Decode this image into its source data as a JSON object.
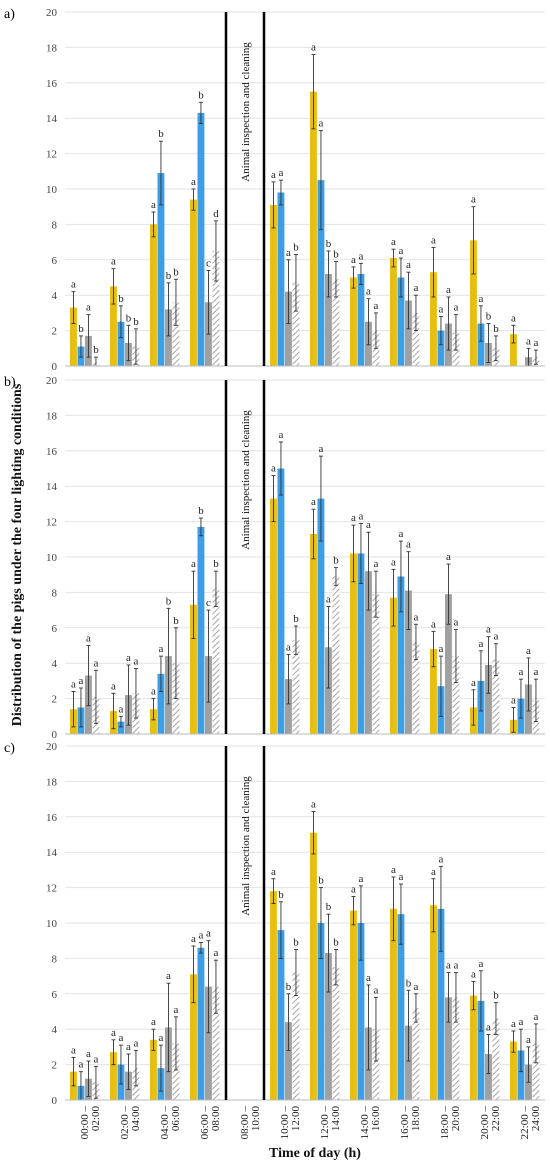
{
  "figure": {
    "y_axis_title": "Distribution of the pigs under the four lighting conditions",
    "x_axis_title": "Time of day (h)"
  },
  "colors": {
    "series": [
      "#e6bf12",
      "#3d9ee8",
      "#a0a0a0",
      "#ffffff"
    ],
    "hatch": "#909090",
    "gridline": "#e2e2e2",
    "divider": "#000000",
    "error_bar": "#333333"
  },
  "chart_data": [
    {
      "type": "bar",
      "panel_label": "a)",
      "annotation": "Animal inspection and cleaning",
      "categories": [
        "00:00 – 02:00",
        "02:00 – 04:00",
        "04:00 – 06:00",
        "06:00 – 08:00",
        "08:00 – 10:00",
        "10:00 – 12:00",
        "12:00 – 14:00",
        "14:00 – 16:00",
        "16:00 – 18:00",
        "18:00 – 20:00",
        "20:00 – 22:00",
        "22:00 – 24:00"
      ],
      "ylim": [
        0,
        20
      ],
      "yticks": [
        0,
        2,
        4,
        6,
        8,
        10,
        12,
        14,
        16,
        18,
        20
      ],
      "series": [
        {
          "values": [
            3.3,
            4.5,
            8.0,
            9.4,
            null,
            9.1,
            15.5,
            5.0,
            6.1,
            5.3,
            7.1,
            1.8
          ],
          "errors": [
            0.9,
            1.0,
            0.7,
            0.6,
            null,
            1.3,
            2.1,
            0.6,
            0.5,
            1.4,
            1.9,
            0.5
          ],
          "letters": [
            "a",
            "a",
            "a",
            "a",
            "",
            "a",
            "a",
            "a",
            "a",
            "a",
            "a",
            "a"
          ]
        },
        {
          "values": [
            1.1,
            2.5,
            10.9,
            14.3,
            null,
            9.8,
            10.5,
            5.2,
            5.0,
            2.0,
            2.4,
            0.0
          ],
          "errors": [
            0.6,
            0.9,
            1.8,
            0.6,
            null,
            0.7,
            2.8,
            0.6,
            1.1,
            0.8,
            1.0,
            0.0
          ],
          "letters": [
            "b",
            "b",
            "b",
            "b",
            "",
            "a",
            "a",
            "a",
            "a",
            "a",
            "a",
            ""
          ]
        },
        {
          "values": [
            1.7,
            1.3,
            3.2,
            3.6,
            null,
            4.2,
            5.2,
            2.5,
            3.7,
            2.4,
            1.3,
            0.5
          ],
          "errors": [
            1.2,
            1.0,
            1.5,
            1.8,
            null,
            1.8,
            1.3,
            1.3,
            1.6,
            1.5,
            1.1,
            0.5
          ],
          "letters": [
            "a",
            "b",
            "b",
            "c",
            "",
            "a",
            "b",
            "a",
            "a",
            "a",
            "b",
            "a"
          ]
        },
        {
          "values": [
            0.2,
            1.1,
            3.6,
            6.5,
            null,
            4.7,
            4.9,
            2.0,
            3.0,
            1.9,
            1.0,
            0.5
          ],
          "errors": [
            0.3,
            1.0,
            1.3,
            1.7,
            null,
            1.6,
            1.0,
            1.0,
            1.0,
            1.0,
            0.7,
            0.4
          ],
          "letters": [
            "b",
            "b",
            "b",
            "d",
            "",
            "b",
            "b",
            "a",
            "a",
            "a",
            "b",
            "a"
          ]
        }
      ]
    },
    {
      "type": "bar",
      "panel_label": "b)",
      "annotation": "Animal inspection and cleaning",
      "categories": [
        "00:00 – 02:00",
        "02:00 – 04:00",
        "04:00 – 06:00",
        "06:00 – 08:00",
        "08:00 – 10:00",
        "10:00 – 12:00",
        "12:00 – 14:00",
        "14:00 – 16:00",
        "16:00 – 18:00",
        "18:00 – 20:00",
        "20:00 – 22:00",
        "22:00 – 24:00"
      ],
      "ylim": [
        0,
        20
      ],
      "yticks": [
        0,
        2,
        4,
        6,
        8,
        10,
        12,
        14,
        16,
        18,
        20
      ],
      "series": [
        {
          "values": [
            1.4,
            1.3,
            1.4,
            7.3,
            null,
            13.3,
            11.3,
            10.2,
            7.7,
            4.8,
            1.5,
            0.8
          ],
          "errors": [
            1.0,
            1.0,
            0.6,
            1.9,
            null,
            1.3,
            1.4,
            1.6,
            1.6,
            1.0,
            1.0,
            0.7
          ],
          "letters": [
            "a",
            "a",
            "a",
            "a",
            "",
            "a",
            "a",
            "a",
            "a",
            "a",
            "a",
            "a"
          ]
        },
        {
          "values": [
            1.5,
            0.7,
            3.4,
            11.7,
            null,
            15.0,
            13.3,
            10.2,
            8.9,
            2.7,
            3.0,
            2.0
          ],
          "errors": [
            1.1,
            0.3,
            1.0,
            0.5,
            null,
            1.5,
            2.4,
            1.7,
            2.0,
            1.7,
            1.7,
            1.1
          ],
          "letters": [
            "a",
            "a",
            "a",
            "b",
            "",
            "a",
            "a",
            "a",
            "a",
            "a",
            "a",
            "a"
          ]
        },
        {
          "values": [
            3.3,
            2.2,
            4.4,
            4.4,
            null,
            3.1,
            4.9,
            9.2,
            8.1,
            7.9,
            3.9,
            2.8
          ],
          "errors": [
            1.7,
            1.7,
            2.7,
            2.6,
            null,
            1.4,
            2.3,
            2.2,
            2.2,
            1.7,
            1.6,
            1.5
          ],
          "letters": [
            "a",
            "a",
            "b",
            "c",
            "",
            "a",
            "a",
            "a",
            "a",
            "a",
            "a",
            "a"
          ]
        },
        {
          "values": [
            2.1,
            2.3,
            4.0,
            8.2,
            null,
            5.3,
            8.9,
            7.9,
            5.2,
            4.4,
            4.2,
            1.9
          ],
          "errors": [
            1.5,
            1.4,
            2.0,
            1.0,
            null,
            0.8,
            0.5,
            1.3,
            1.0,
            1.5,
            0.9,
            1.2
          ],
          "letters": [
            "a",
            "a",
            "b",
            "b",
            "",
            "b",
            "b",
            "a",
            "a",
            "a",
            "a",
            "a"
          ]
        }
      ]
    },
    {
      "type": "bar",
      "panel_label": "c)",
      "annotation": "Animal inspection and cleaning",
      "categories": [
        "00:00 – 02:00",
        "02:00 – 04:00",
        "04:00 – 06:00",
        "06:00 – 08:00",
        "08:00 – 10:00",
        "10:00 – 12:00",
        "12:00 – 14:00",
        "14:00 – 16:00",
        "16:00 – 18:00",
        "18:00 – 20:00",
        "20:00 – 22:00",
        "22:00 – 24:00"
      ],
      "ylim": [
        0,
        20
      ],
      "yticks": [
        0,
        2,
        4,
        6,
        8,
        10,
        12,
        14,
        16,
        18,
        20
      ],
      "series": [
        {
          "values": [
            1.6,
            2.7,
            3.4,
            7.1,
            null,
            11.8,
            15.1,
            10.7,
            10.8,
            11.0,
            5.9,
            3.3
          ],
          "errors": [
            0.8,
            0.7,
            0.6,
            1.6,
            null,
            0.7,
            1.2,
            0.8,
            1.8,
            1.5,
            0.8,
            0.6
          ],
          "letters": [
            "a",
            "a",
            "a",
            "a",
            "",
            "a",
            "a",
            "a",
            "a",
            "a",
            "a",
            "a"
          ]
        },
        {
          "values": [
            0.8,
            2.0,
            1.8,
            8.6,
            null,
            9.6,
            10.0,
            10.0,
            10.5,
            10.8,
            5.6,
            2.8
          ],
          "errors": [
            0.8,
            1.1,
            1.3,
            0.3,
            null,
            1.6,
            2.0,
            2.1,
            1.7,
            2.4,
            1.7,
            1.2
          ],
          "letters": [
            "a",
            "a",
            "a",
            "a",
            "",
            "b",
            "b",
            "a",
            "a",
            "a",
            "a",
            "a"
          ]
        },
        {
          "values": [
            1.2,
            1.6,
            4.1,
            6.4,
            null,
            4.4,
            8.3,
            4.1,
            4.2,
            5.8,
            2.6,
            2.0
          ],
          "errors": [
            1.0,
            1.0,
            2.5,
            2.6,
            null,
            1.6,
            2.2,
            2.4,
            2.0,
            1.4,
            1.1,
            1.0
          ],
          "letters": [
            "a",
            "a",
            "a",
            "a",
            "",
            "b",
            "b",
            "a",
            "b",
            "a",
            "a",
            "a"
          ]
        },
        {
          "values": [
            1.0,
            1.8,
            3.2,
            6.4,
            null,
            7.2,
            7.5,
            4.0,
            5.2,
            5.8,
            4.6,
            3.2
          ],
          "errors": [
            0.9,
            1.0,
            1.5,
            1.5,
            null,
            1.3,
            1.0,
            1.8,
            0.8,
            1.4,
            0.9,
            1.1
          ],
          "letters": [
            "a",
            "a",
            "a",
            "a",
            "",
            "b",
            "b",
            "a",
            "a",
            "a",
            "b",
            "a"
          ]
        }
      ]
    }
  ]
}
